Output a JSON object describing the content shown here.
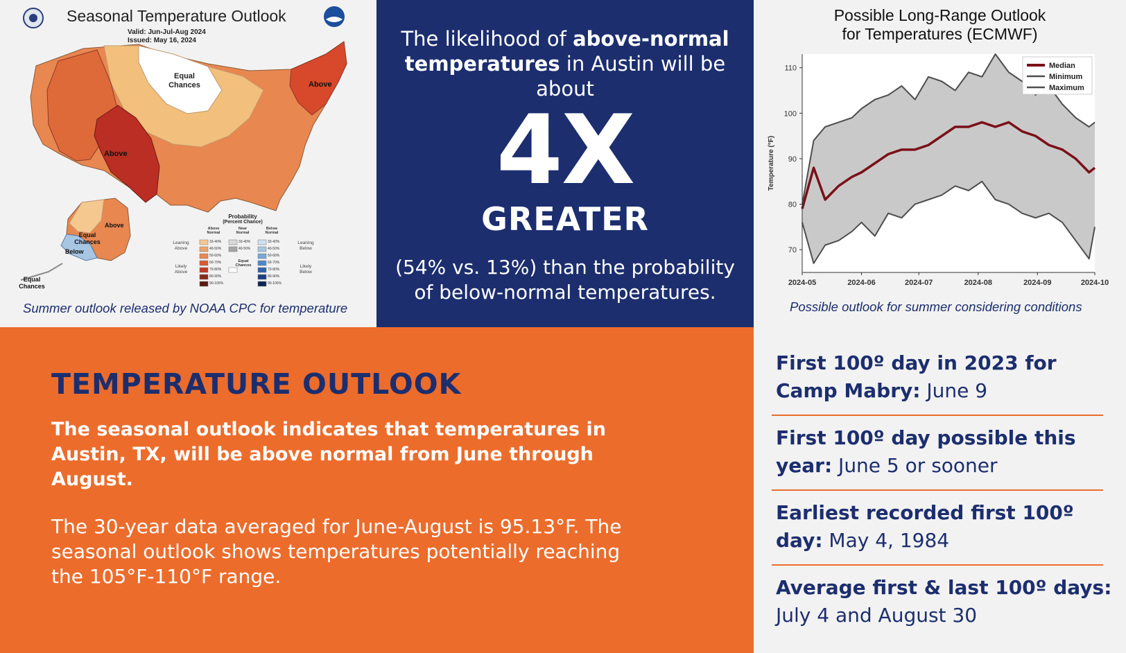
{
  "map_panel": {
    "title": "Seasonal Temperature Outlook",
    "valid": "Valid:  Jun-Jul-Aug 2024",
    "issued": "Issued:  May 16, 2024",
    "region_labels": {
      "equal_chances_north": "Equal Chances",
      "above_east": "Above",
      "above_texas": "Above",
      "above_alaska": "Above",
      "equal_chances_alaska": "Equal Chances",
      "below_alaska": "Below",
      "equal_chances_corner": "Equal Chances"
    },
    "legend": {
      "title": "Probability",
      "subtitle": "(Percent Chance)",
      "col_above": "Above Normal",
      "col_near": "Near Normal",
      "col_below": "Below Normal",
      "leaning_above": "Leaning Above",
      "likely_above": "Likely Above",
      "leaning_below": "Leaning Below",
      "likely_below": "Likely Below",
      "equal_chances": "Equal Chances",
      "above_ranges": [
        "33-40%",
        "40-50%",
        "50-60%",
        "60-70%",
        "70-80%",
        "80-90%",
        "90-100%"
      ],
      "near_ranges": [
        "33-40%",
        "40-50%"
      ],
      "below_ranges": [
        "33-40%",
        "40-50%",
        "50-60%",
        "60-70%",
        "70-80%",
        "80-90%",
        "90-100%"
      ],
      "above_colors": [
        "#f5c890",
        "#eca46c",
        "#e88850",
        "#d95a32",
        "#c03a24",
        "#8a2a1c",
        "#5a1a12"
      ],
      "below_colors": [
        "#cfe0ef",
        "#a7c6e4",
        "#7aa8d4",
        "#4f88c4",
        "#2e62a8",
        "#1b3f80",
        "#0f2456"
      ]
    },
    "caption": "Summer outlook released by NOAA CPC for temperature"
  },
  "blue_panel": {
    "intro_a": "The likelihood of ",
    "intro_b": "above-normal temperatures",
    "intro_c": " in Austin will be about",
    "big": "4X",
    "greater": "GREATER",
    "note": "(54% vs. 13%) than the probability of below-normal temperatures."
  },
  "chart_panel": {
    "title_line1": "Possible Long-Range Outlook",
    "title_line2": "for Temperatures (ECMWF)",
    "caption": "Possible outlook for summer considering conditions",
    "colors": {
      "median": "#7a1018",
      "min": "#4d4d4d",
      "max": "#4d4d4d",
      "band": "#c9c9c9"
    }
  },
  "chart_data": {
    "type": "line",
    "title": "Possible Long-Range Outlook for Temperatures (ECMWF)",
    "ylabel": "Temperature (°F)",
    "xlabel": "",
    "ylim": [
      65,
      113
    ],
    "xlim": [
      "2024-05-01",
      "2024-10-01"
    ],
    "xticks": [
      "2024-05",
      "2024-06",
      "2024-07",
      "2024-08",
      "2024-09",
      "2024-10"
    ],
    "yticks": [
      70,
      80,
      90,
      100,
      110
    ],
    "legend_position": "top-right",
    "x": [
      "2024-05-01",
      "2024-05-07",
      "2024-05-13",
      "2024-05-20",
      "2024-05-27",
      "2024-06-01",
      "2024-06-08",
      "2024-06-15",
      "2024-06-22",
      "2024-06-29",
      "2024-07-06",
      "2024-07-13",
      "2024-07-20",
      "2024-07-27",
      "2024-08-03",
      "2024-08-10",
      "2024-08-17",
      "2024-08-24",
      "2024-08-31",
      "2024-09-07",
      "2024-09-14",
      "2024-09-21",
      "2024-09-28",
      "2024-10-01"
    ],
    "series": [
      {
        "name": "Median",
        "values": [
          79,
          88,
          81,
          84,
          86,
          87,
          89,
          91,
          92,
          92,
          93,
          95,
          97,
          97,
          98,
          97,
          98,
          96,
          95,
          93,
          92,
          90,
          87,
          88
        ]
      },
      {
        "name": "Minimum",
        "values": [
          76,
          67,
          71,
          72,
          74,
          76,
          73,
          78,
          77,
          80,
          81,
          82,
          84,
          83,
          85,
          81,
          80,
          78,
          77,
          78,
          76,
          72,
          68,
          75
        ]
      },
      {
        "name": "Maximum",
        "values": [
          80,
          94,
          97,
          98,
          99,
          101,
          103,
          104,
          106,
          103,
          108,
          107,
          105,
          109,
          108,
          113,
          109,
          107,
          104,
          106,
          102,
          99,
          97,
          98
        ]
      }
    ]
  },
  "outlook_panel": {
    "heading": "TEMPERATURE OUTLOOK",
    "bold_text": "The seasonal outlook indicates that temperatures in Austin, TX, will be above normal from June through August.",
    "body_text": "The 30-year data averaged for June-August is 95.13°F. The seasonal outlook shows temperatures potentially reaching the 105°F-110°F range."
  },
  "facts_panel": {
    "facts": [
      {
        "label": "First 100º day in 2023 for Camp Mabry:",
        "value": " June 9"
      },
      {
        "label": "First 100º day possible this year:",
        "value": " June 5 or sooner"
      },
      {
        "label": "Earliest recorded first 100º day:",
        "value": " May 4, 1984"
      },
      {
        "label": "Average first & last 100º days:",
        "value": " July 4 and August 30"
      }
    ]
  }
}
